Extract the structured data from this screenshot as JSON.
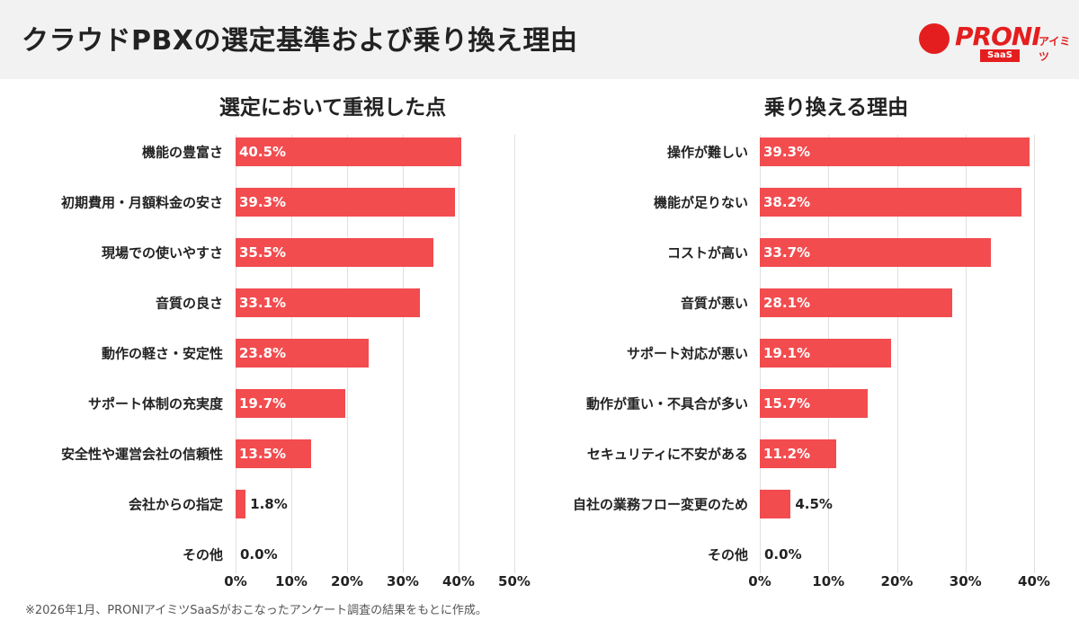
{
  "header": {
    "title": "クラウドPBXの選定基準および乗り換え理由",
    "logo": {
      "main": "PRONI",
      "sub": "アイミツ",
      "badge": "SaaS"
    }
  },
  "colors": {
    "bar": "#f24c4f",
    "header_bg": "#f2f2f2",
    "brand": "#e41e1e"
  },
  "chart_data": [
    {
      "type": "bar",
      "orientation": "horizontal",
      "title": "選定において重視した点",
      "xlim": [
        0,
        50
      ],
      "xticks": [
        "0%",
        "10%",
        "20%",
        "30%",
        "40%",
        "50%"
      ],
      "grid": true,
      "categories": [
        "機能の豊富さ",
        "初期費用・月額料金の安さ",
        "現場での使いやすさ",
        "音質の良さ",
        "動作の軽さ・安定性",
        "サポート体制の充実度",
        "安全性や運営会社の信頼性",
        "会社からの指定",
        "その他"
      ],
      "values": [
        40.5,
        39.3,
        35.5,
        33.1,
        23.8,
        19.7,
        13.5,
        1.8,
        0.0
      ],
      "labels": [
        "40.5%",
        "39.3%",
        "35.5%",
        "33.1%",
        "23.8%",
        "19.7%",
        "13.5%",
        "1.8%",
        "0.0%"
      ]
    },
    {
      "type": "bar",
      "orientation": "horizontal",
      "title": "乗り換える理由",
      "xlim": [
        0,
        40
      ],
      "xticks": [
        "0%",
        "10%",
        "20%",
        "30%",
        "40%"
      ],
      "grid": true,
      "categories": [
        "操作が難しい",
        "機能が足りない",
        "コストが高い",
        "音質が悪い",
        "サポート対応が悪い",
        "動作が重い・不具合が多い",
        "セキュリティに不安がある",
        "自社の業務フロー変更のため",
        "その他"
      ],
      "values": [
        39.3,
        38.2,
        33.7,
        28.1,
        19.1,
        15.7,
        11.2,
        4.5,
        0.0
      ],
      "labels": [
        "39.3%",
        "38.2%",
        "33.7%",
        "28.1%",
        "19.1%",
        "15.7%",
        "11.2%",
        "4.5%",
        "0.0%"
      ]
    }
  ],
  "footnote": "※2026年1月、PRONIアイミツSaaSがおこなったアンケート調査の結果をもとに作成。"
}
